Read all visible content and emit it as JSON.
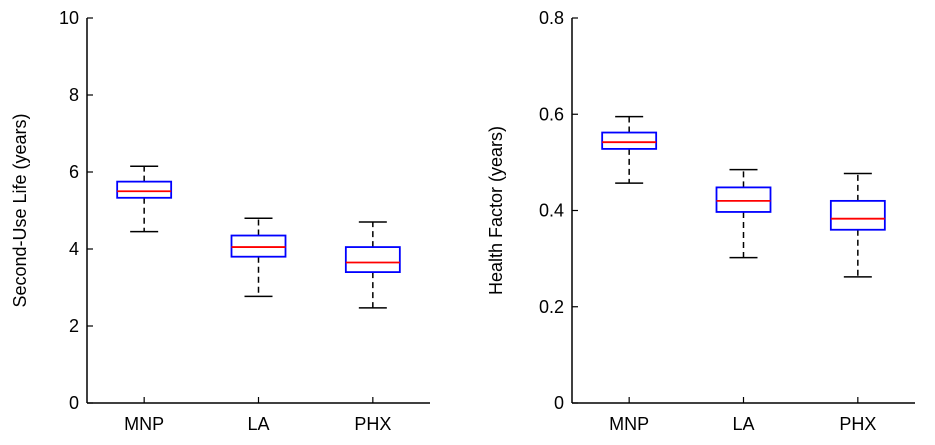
{
  "chart_data": [
    {
      "type": "box",
      "ylabel": "Second-Use Life (years)",
      "xlabel": "",
      "categories": [
        "MNP",
        "LA",
        "PHX"
      ],
      "ylim": [
        0,
        10
      ],
      "yticks": [
        0,
        2,
        4,
        6,
        8,
        10
      ],
      "yticklabels": [
        "0",
        "2",
        "4",
        "6",
        "8",
        "10"
      ],
      "grid": false,
      "boxes": [
        {
          "category": "MNP",
          "min": 4.45,
          "q1": 5.33,
          "median": 5.5,
          "q3": 5.75,
          "max": 6.15
        },
        {
          "category": "LA",
          "min": 2.77,
          "q1": 3.8,
          "median": 4.05,
          "q3": 4.35,
          "max": 4.8
        },
        {
          "category": "PHX",
          "min": 2.47,
          "q1": 3.4,
          "median": 3.65,
          "q3": 4.05,
          "max": 4.7
        }
      ]
    },
    {
      "type": "box",
      "ylabel": "Health Factor (years)",
      "xlabel": "",
      "categories": [
        "MNP",
        "LA",
        "PHX"
      ],
      "ylim": [
        0,
        0.8
      ],
      "yticks": [
        0,
        0.2,
        0.4,
        0.6,
        0.8
      ],
      "yticklabels": [
        "0",
        "0.2",
        "0.4",
        "0.6",
        "0.8"
      ],
      "grid": false,
      "boxes": [
        {
          "category": "MNP",
          "min": 0.457,
          "q1": 0.528,
          "median": 0.542,
          "q3": 0.562,
          "max": 0.595
        },
        {
          "category": "LA",
          "min": 0.302,
          "q1": 0.397,
          "median": 0.42,
          "q3": 0.448,
          "max": 0.485
        },
        {
          "category": "PHX",
          "min": 0.262,
          "q1": 0.36,
          "median": 0.383,
          "q3": 0.42,
          "max": 0.477
        }
      ]
    }
  ],
  "colors": {
    "box": "#0000ff",
    "median": "#ff0000",
    "whisker": "#000000",
    "axis": "#000000"
  }
}
